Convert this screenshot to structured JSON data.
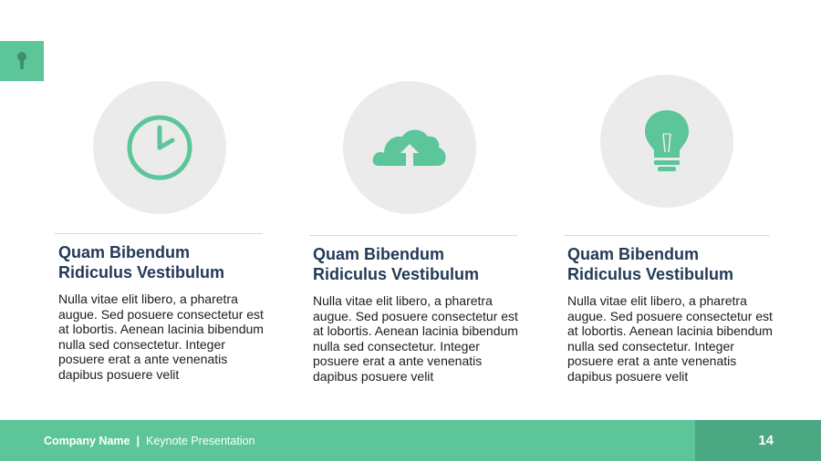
{
  "colors": {
    "accent": "#5cc59a",
    "accent_dark": "#4ba883",
    "icon_circle": "#ebebeb",
    "title_text": "#233a57",
    "body_text": "#1c1c1c"
  },
  "marker": {
    "icon": "pin-icon"
  },
  "columns": [
    {
      "icon": "clock-icon",
      "title_line1": "Quam Bibendum",
      "title_line2": "Ridiculus Vestibulum",
      "body": "Nulla vitae elit libero, a pharetra augue. Sed posuere consectetur est at lobortis. Aenean lacinia bibendum nulla sed consectetur. Integer posuere erat a ante venenatis dapibus posuere velit"
    },
    {
      "icon": "cloud-upload-icon",
      "title_line1": "Quam Bibendum",
      "title_line2": "Ridiculus Vestibulum",
      "body": "Nulla vitae elit libero, a pharetra augue. Sed posuere consectetur est at lobortis. Aenean lacinia bibendum nulla sed consectetur. Integer posuere erat a ante venenatis dapibus posuere velit"
    },
    {
      "icon": "lightbulb-icon",
      "title_line1": "Quam Bibendum",
      "title_line2": "Ridiculus Vestibulum",
      "body": "Nulla vitae elit libero, a pharetra augue. Sed posuere consectetur est at lobortis. Aenean lacinia bibendum nulla sed consectetur. Integer posuere erat a ante venenatis dapibus posuere velit"
    }
  ],
  "footer": {
    "company": "Company Name",
    "separator": "|",
    "subtitle": "Keynote Presentation",
    "page_number": "14"
  }
}
